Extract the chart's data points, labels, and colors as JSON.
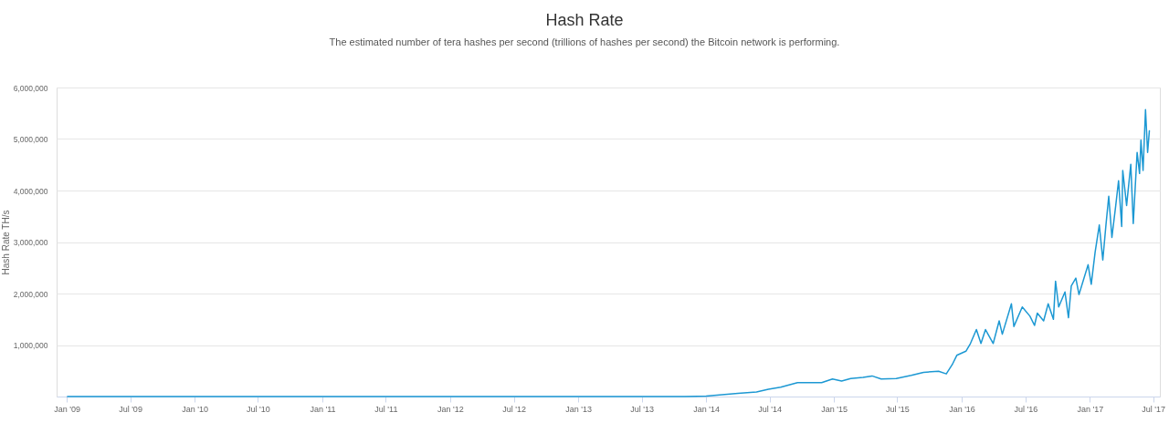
{
  "chart_data": {
    "type": "line",
    "title": "Hash Rate",
    "subtitle": "The estimated number of tera hashes per second (trillions of hashes per second) the Bitcoin network is performing.",
    "ylabel": "Hash Rate TH/s",
    "x": [
      "2009-01-03",
      "2009-07-01",
      "2010-01-01",
      "2010-07-01",
      "2011-01-01",
      "2011-07-01",
      "2012-01-01",
      "2012-07-01",
      "2013-01-01",
      "2013-07-01",
      "2013-11-01",
      "2014-01-01",
      "2014-04-02",
      "2014-05-25",
      "2014-06-28",
      "2014-08-02",
      "2014-09-19",
      "2014-10-28",
      "2014-11-27",
      "2014-12-28",
      "2015-01-23",
      "2015-02-18",
      "2015-03-25",
      "2015-04-20",
      "2015-05-16",
      "2015-06-28",
      "2015-08-10",
      "2015-09-14",
      "2015-10-27",
      "2015-11-18",
      "2015-12-05",
      "2015-12-18",
      "2016-01-13",
      "2016-01-26",
      "2016-02-12",
      "2016-02-25",
      "2016-03-09",
      "2016-03-31",
      "2016-04-17",
      "2016-04-26",
      "2016-05-22",
      "2016-05-29",
      "2016-06-22",
      "2016-07-14",
      "2016-07-27",
      "2016-08-04",
      "2016-08-22",
      "2016-09-04",
      "2016-09-19",
      "2016-09-25",
      "2016-10-04",
      "2016-10-22",
      "2016-11-01",
      "2016-11-09",
      "2016-11-22",
      "2016-12-01",
      "2016-12-14",
      "2016-12-27",
      "2017-01-05",
      "2017-01-16",
      "2017-01-28",
      "2017-02-07",
      "2017-02-16",
      "2017-02-24",
      "2017-03-05",
      "2017-03-16",
      "2017-03-24",
      "2017-04-02",
      "2017-04-05",
      "2017-04-16",
      "2017-04-28",
      "2017-05-05",
      "2017-05-16",
      "2017-05-23",
      "2017-05-27",
      "2017-06-02",
      "2017-06-09",
      "2017-06-15",
      "2017-06-20"
    ],
    "series": [
      {
        "color": "#1c98d3",
        "values": [
          0,
          0,
          0,
          0,
          0,
          0,
          0,
          0,
          0,
          0,
          0,
          10000,
          60000,
          90000,
          140000,
          180000,
          270000,
          270000,
          270000,
          340000,
          300000,
          350000,
          370000,
          400000,
          340000,
          350000,
          410000,
          470000,
          490000,
          440000,
          620000,
          800000,
          880000,
          1030000,
          1300000,
          1030000,
          1300000,
          1030000,
          1470000,
          1210000,
          1800000,
          1360000,
          1740000,
          1560000,
          1380000,
          1620000,
          1470000,
          1800000,
          1500000,
          2240000,
          1740000,
          2030000,
          1530000,
          2150000,
          2300000,
          1980000,
          2270000,
          2560000,
          2180000,
          2800000,
          3330000,
          2650000,
          3330000,
          3890000,
          3090000,
          3710000,
          4190000,
          3300000,
          4390000,
          3710000,
          4510000,
          3360000,
          4740000,
          4330000,
          4980000,
          4390000,
          5570000,
          4740000,
          5160000
        ]
      }
    ],
    "xlim": [
      "2008-12-03",
      "2017-07-20"
    ],
    "xticks": [
      {
        "value": "2009-01-01",
        "label": "Jan '09"
      },
      {
        "value": "2009-07-01",
        "label": "Jul '09"
      },
      {
        "value": "2010-01-01",
        "label": "Jan '10"
      },
      {
        "value": "2010-07-01",
        "label": "Jul '10"
      },
      {
        "value": "2011-01-01",
        "label": "Jan '11"
      },
      {
        "value": "2011-07-01",
        "label": "Jul '11"
      },
      {
        "value": "2012-01-01",
        "label": "Jan '12"
      },
      {
        "value": "2012-07-01",
        "label": "Jul '12"
      },
      {
        "value": "2013-01-01",
        "label": "Jan '13"
      },
      {
        "value": "2013-07-01",
        "label": "Jul '13"
      },
      {
        "value": "2014-01-01",
        "label": "Jan '14"
      },
      {
        "value": "2014-07-01",
        "label": "Jul '14"
      },
      {
        "value": "2015-01-01",
        "label": "Jan '15"
      },
      {
        "value": "2015-07-01",
        "label": "Jul '15"
      },
      {
        "value": "2016-01-01",
        "label": "Jan '16"
      },
      {
        "value": "2016-07-01",
        "label": "Jul '16"
      },
      {
        "value": "2017-01-01",
        "label": "Jan '17"
      },
      {
        "value": "2017-07-01",
        "label": "Jul '17"
      }
    ],
    "ylim": [
      0,
      6000000
    ],
    "yticks": [
      {
        "value": 1000000,
        "label": "1,000,000"
      },
      {
        "value": 2000000,
        "label": "2,000,000"
      },
      {
        "value": 3000000,
        "label": "3,000,000"
      },
      {
        "value": 4000000,
        "label": "4,000,000"
      },
      {
        "value": 5000000,
        "label": "5,000,000"
      },
      {
        "value": 6000000,
        "label": "6,000,000"
      }
    ],
    "grid": "y",
    "marker": "none",
    "line_style": "solid"
  }
}
